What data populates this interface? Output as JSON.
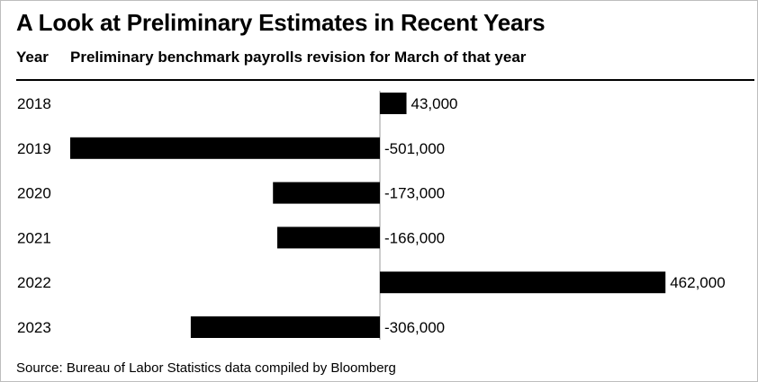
{
  "title": "A Look at Preliminary Estimates in Recent Years",
  "column_headers": {
    "year": "Year",
    "revision": "Preliminary benchmark payrolls revision for March of that year"
  },
  "source": "Source: Bureau of Labor Statistics data compiled by Bloomberg",
  "chart_data": {
    "type": "bar",
    "orientation": "horizontal",
    "categories": [
      "2018",
      "2019",
      "2020",
      "2021",
      "2022",
      "2023"
    ],
    "values": [
      43000,
      -501000,
      -173000,
      -166000,
      462000,
      -306000
    ],
    "value_labels": [
      "43,000",
      "-501,000",
      "-173,000",
      "-166,000",
      "462,000",
      "-306,000"
    ],
    "title": "A Look at Preliminary Estimates in Recent Years",
    "xlabel": "",
    "ylabel": "",
    "grid": false,
    "legend": "none",
    "bar_color": "#000000"
  }
}
